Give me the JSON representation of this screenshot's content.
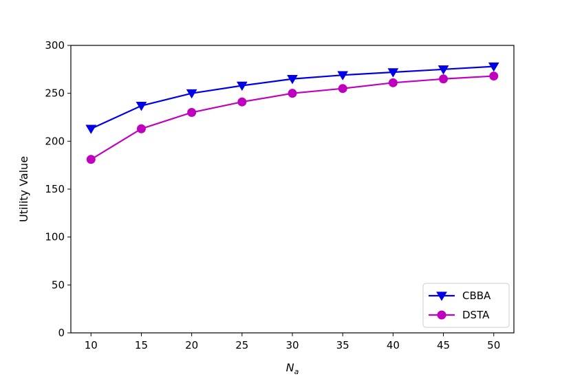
{
  "chart_data": {
    "type": "line",
    "title": "",
    "xlabel": "N",
    "xlabel_subscript": "a",
    "ylabel": "Utility Value",
    "x": [
      10,
      15,
      20,
      25,
      30,
      35,
      40,
      45,
      50
    ],
    "xlim": [
      8,
      52
    ],
    "ylim": [
      0,
      300
    ],
    "x_ticks": [
      10,
      15,
      20,
      25,
      30,
      35,
      40,
      45,
      50
    ],
    "y_ticks": [
      0,
      50,
      100,
      150,
      200,
      250,
      300
    ],
    "grid": false,
    "legend_position": "bottom-right",
    "series": [
      {
        "name": "CBBA",
        "color": "#0000e6",
        "marker": "triangle-down",
        "values": [
          213,
          237,
          250,
          258,
          265,
          269,
          272,
          275,
          278
        ]
      },
      {
        "name": "DSTA",
        "color": "#bf00bf",
        "marker": "circle",
        "values": [
          181,
          213,
          230,
          241,
          250,
          255,
          261,
          265,
          268
        ]
      }
    ]
  }
}
